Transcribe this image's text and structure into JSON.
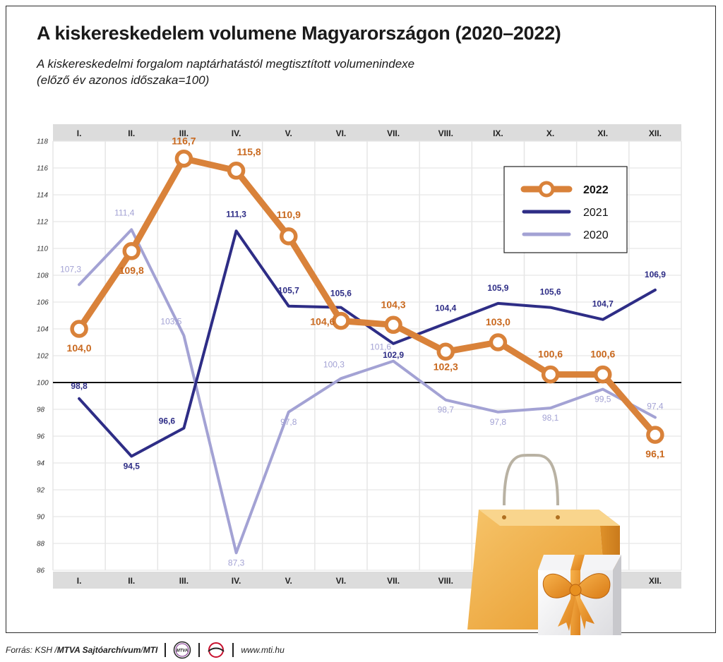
{
  "title": "A kiskereskedelem volumene Magyarországon (2020–2022)",
  "subtitle_line1": "A kiskereskedelmi forgalom naptárhatástól megtisztított volumenindexe",
  "subtitle_line2": "(előző év azonos időszaka=100)",
  "colors": {
    "s2022": "#d9823a",
    "s2021": "#2e2d86",
    "s2020": "#a3a2d4",
    "label2022": "#c9691f",
    "band": "#dcdcdc",
    "grid": "#e6e6e6"
  },
  "chart_data": {
    "type": "line",
    "categories": [
      "I.",
      "II.",
      "III.",
      "IV.",
      "V.",
      "VI.",
      "VII.",
      "VIII.",
      "IX.",
      "X.",
      "XI.",
      "XII."
    ],
    "ylim": [
      86,
      118
    ],
    "yticks": [
      86,
      88,
      90,
      92,
      94,
      96,
      98,
      100,
      102,
      104,
      106,
      108,
      110,
      112,
      114,
      116,
      118
    ],
    "reference_line": 100,
    "grid": true,
    "legend_position": "top-right",
    "series": [
      {
        "name": "2022",
        "values": [
          104.0,
          109.8,
          116.7,
          115.8,
          110.9,
          104.6,
          104.3,
          102.3,
          103.0,
          100.6,
          100.6,
          96.1
        ],
        "labels": [
          "104,0",
          "109,8",
          "116,7",
          "115,8",
          "110,9",
          "104,6",
          "104,3",
          "102,3",
          "103,0",
          "100,6",
          "100,6",
          "96,1"
        ]
      },
      {
        "name": "2021",
        "values": [
          98.8,
          94.5,
          96.6,
          111.3,
          105.7,
          105.6,
          102.9,
          104.4,
          105.9,
          105.6,
          104.7,
          106.9
        ],
        "labels": [
          "98,8",
          "94,5",
          "96,6",
          "111,3",
          "105,7",
          "105,6",
          "102,9",
          "104,4",
          "105,9",
          "105,6",
          "104,7",
          "106,9"
        ]
      },
      {
        "name": "2020",
        "values": [
          107.3,
          111.4,
          103.5,
          87.3,
          97.8,
          100.3,
          101.6,
          98.7,
          97.8,
          98.1,
          99.5,
          97.4
        ],
        "labels": [
          "107,3",
          "111,4",
          "103,5",
          "87,3",
          "97,8",
          "100,3",
          "101,6",
          "98,7",
          "97,8",
          "98,1",
          "99,5",
          "97,4"
        ]
      }
    ]
  },
  "footer": {
    "source_prefix": "Forrás: KSH / ",
    "archive": "MTVA Sajtóarchívum",
    "slash": " / ",
    "agency": "MTI",
    "url": "www.mti.hu",
    "mtva_logo_text": "MTVA"
  }
}
